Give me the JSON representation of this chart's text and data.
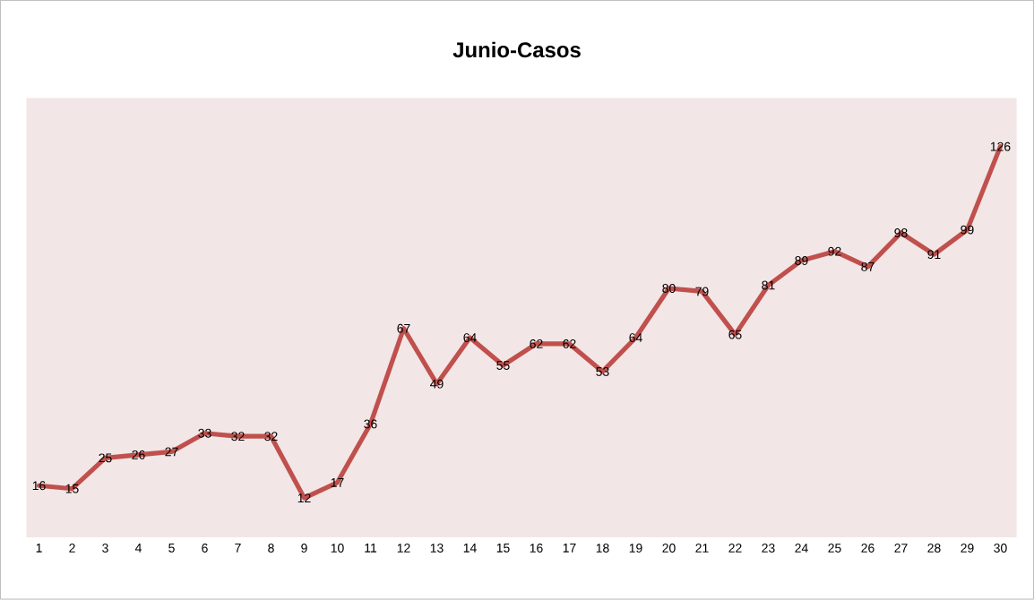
{
  "chart_data": {
    "type": "line",
    "title": "Junio-Casos",
    "categories": [
      "1",
      "2",
      "3",
      "4",
      "5",
      "6",
      "7",
      "8",
      "9",
      "10",
      "11",
      "12",
      "13",
      "14",
      "15",
      "16",
      "17",
      "18",
      "19",
      "20",
      "21",
      "22",
      "23",
      "24",
      "25",
      "26",
      "27",
      "28",
      "29",
      "30"
    ],
    "values": [
      16,
      15,
      25,
      26,
      27,
      33,
      32,
      32,
      12,
      17,
      36,
      67,
      49,
      64,
      55,
      62,
      62,
      53,
      64,
      80,
      79,
      65,
      81,
      89,
      92,
      87,
      98,
      91,
      99,
      126
    ],
    "color": "#c0504d",
    "data_labels": true,
    "marker": "none",
    "line_style": "solid"
  }
}
